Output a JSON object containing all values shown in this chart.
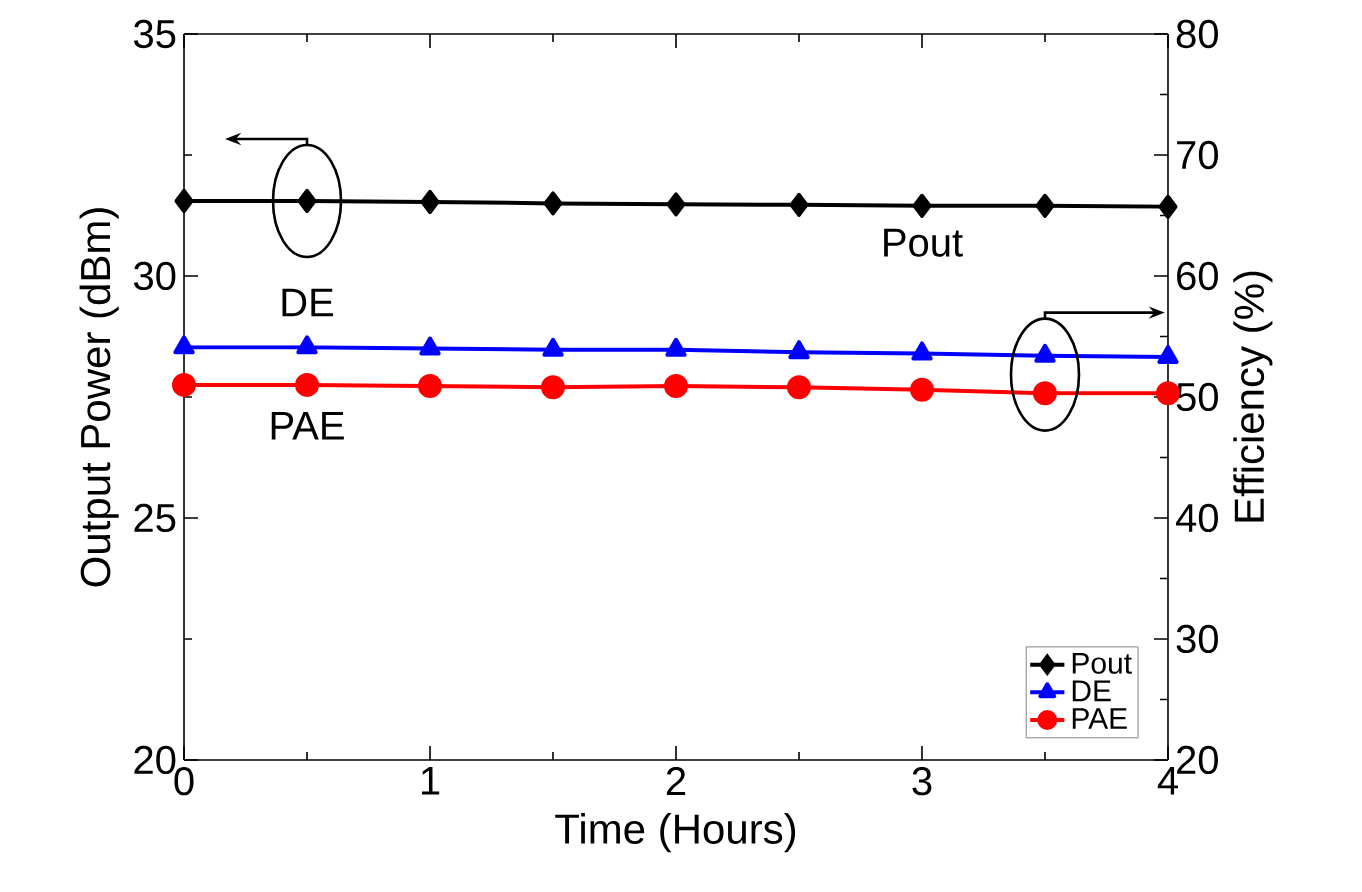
{
  "chart_data": {
    "type": "line",
    "xlabel": "Time (Hours)",
    "ylabel": "Output Power (dBm)",
    "y2label": "Efficiency (%)",
    "x": [
      0,
      0.5,
      1,
      1.5,
      2,
      2.5,
      3,
      3.5,
      4
    ],
    "xlim": [
      0,
      4
    ],
    "xticks": [
      0,
      1,
      2,
      3,
      4
    ],
    "ylim": [
      20,
      35
    ],
    "yticks": [
      20,
      25,
      30,
      35
    ],
    "y2lim": [
      20,
      80
    ],
    "y2ticks": [
      20,
      30,
      40,
      50,
      60,
      70,
      80
    ],
    "legend": "bottom right",
    "grid": false,
    "line_style": "solid",
    "series": [
      {
        "name": "Pout",
        "color": "#000000",
        "marker": "diamond",
        "values": [
          31.55,
          31.55,
          31.53,
          31.5,
          31.48,
          31.47,
          31.45,
          31.45,
          31.43
        ]
      },
      {
        "name": "DE",
        "color": "#0000ff",
        "marker": "triangle",
        "axis": "y2",
        "values": [
          54.1,
          54.1,
          54.0,
          53.9,
          53.9,
          53.7,
          53.6,
          53.4,
          53.3
        ]
      },
      {
        "name": "PAE",
        "color": "#ff0000",
        "marker": "circle",
        "axis": "y2",
        "values": [
          51.0,
          51.0,
          50.9,
          50.8,
          50.9,
          50.8,
          50.6,
          50.3,
          50.3
        ]
      }
    ],
    "annotations": [
      "Pout",
      "DE",
      "PAE"
    ]
  }
}
